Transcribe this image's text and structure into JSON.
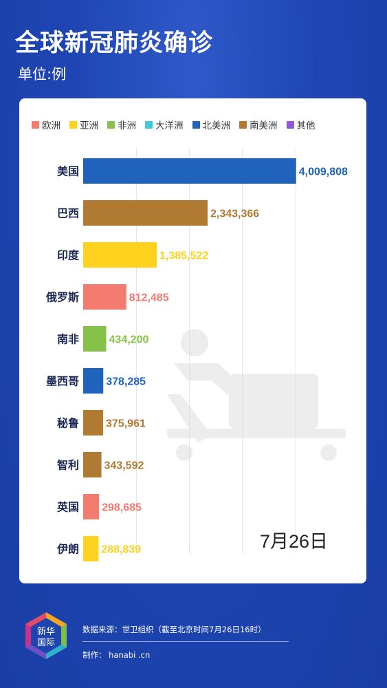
{
  "header": {
    "title": "全球新冠肺炎确诊",
    "unit": "单位:例"
  },
  "legend": [
    {
      "label": "欧洲",
      "color": "#f47b6f"
    },
    {
      "label": "亚洲",
      "color": "#ffd21f"
    },
    {
      "label": "非洲",
      "color": "#86c24a"
    },
    {
      "label": "大洋洲",
      "color": "#3fcbdc"
    },
    {
      "label": "北美洲",
      "color": "#1f63bd"
    },
    {
      "label": "南美洲",
      "color": "#b17a33"
    },
    {
      "label": "其他",
      "color": "#8e5bd9"
    }
  ],
  "chart_data": {
    "type": "bar",
    "orientation": "horizontal",
    "xlim": [
      0,
      4000000
    ],
    "grid": true,
    "categories": [
      "美国",
      "巴西",
      "印度",
      "俄罗斯",
      "南非",
      "墨西哥",
      "秘鲁",
      "智利",
      "英国",
      "伊朗"
    ],
    "values": [
      4009808,
      2343366,
      1385522,
      812485,
      434200,
      378285,
      375961,
      343592,
      298685,
      288839
    ],
    "value_labels": [
      "4,009,808",
      "2,343,366",
      "1,385,522",
      "812,485",
      "434,200",
      "378,285",
      "375,961",
      "343,592",
      "298,685",
      "288,839"
    ],
    "continents": [
      "北美洲",
      "南美洲",
      "亚洲",
      "欧洲",
      "非洲",
      "北美洲",
      "南美洲",
      "南美洲",
      "欧洲",
      "亚洲"
    ]
  },
  "date": "7月26日",
  "footer": {
    "logo_text_1": "新华",
    "logo_text_2": "国际",
    "source": "数据来源：世卫组织（截至北京时间7月26日16时）",
    "maker": "制作：  hanabi .cn"
  }
}
